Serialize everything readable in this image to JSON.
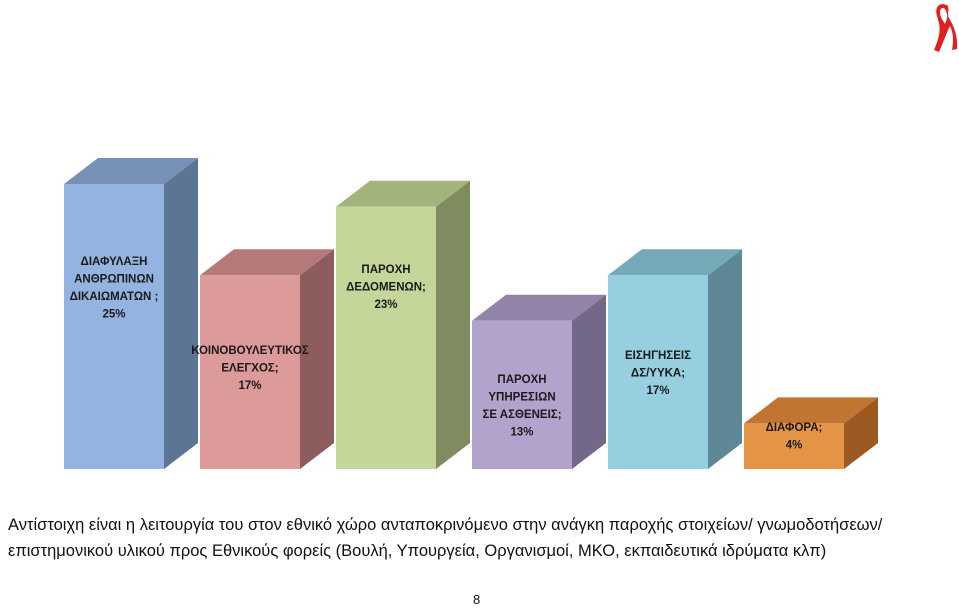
{
  "chart_data": {
    "type": "bar",
    "style": "3d",
    "title": "",
    "xlabel": "",
    "ylabel": "",
    "ylim": [
      0,
      25
    ],
    "grid": false,
    "legend": "none",
    "categories": [
      "ΔΙΑΦΥΛΑΞΗ ΑΝΘΡΩΠΙΝΩΝ ΔΙΚΑΙΩΜΑΤΩΝ",
      "ΚΟΙΝΟΒΟΥΛΕΥΤΙΚΟΣ ΕΛΕΓΧΟΣ",
      "ΠΑΡΟΧΗ ΔΕΔΟΜΕΝΩΝ",
      "ΠΑΡΟΧΗ ΥΠΗΡΕΣΙΩΝ ΣΕ ΑΣΘΕΝΕΙΣ",
      "ΕΙΣΗΓΗΣΕΙΣ ΔΣ/ΥΥΚΑ",
      "ΔΙΑΦΟΡΑ"
    ],
    "values": [
      25,
      17,
      23,
      13,
      17,
      4
    ],
    "label_lines": [
      [
        "ΔΙΑΦΥΛΑΞΗ",
        "ΑΝΘΡΩΠΙΝΩΝ",
        "ΔΙΚΑΙΩΜΑΤΩΝ ;",
        "25%"
      ],
      [
        "ΚΟΙΝΟΒΟΥΛΕΥΤΙΚΟΣ",
        "ΕΛΕΓΧΟΣ;",
        "17%"
      ],
      [
        "ΠΑΡΟΧΗ",
        "ΔΕΔΟΜΕΝΩΝ;",
        "23%"
      ],
      [
        "ΠΑΡΟΧΗ",
        "ΥΠΗΡΕΣΙΩΝ",
        "ΣΕ ΑΣΘΕΝΕΙΣ;",
        "13%"
      ],
      [
        "ΕΙΣΗΓΗΣΕΙΣ",
        "ΔΣ/ΥΥΚΑ;",
        "17%"
      ],
      [
        "ΔΙΑΦΟΡΑ;",
        "4%"
      ]
    ],
    "colors": [
      {
        "front": "#95b3e0",
        "side": "#5d7595",
        "top": "#7690b8"
      },
      {
        "front": "#dc9a9a",
        "side": "#8d5d5d",
        "top": "#b47a7a"
      },
      {
        "front": "#c5d69b",
        "side": "#7f8c5f",
        "top": "#a2b37c"
      },
      {
        "front": "#b2a3cc",
        "side": "#746888",
        "top": "#9184a8"
      },
      {
        "front": "#95cfe0",
        "side": "#5e8896",
        "top": "#76a9b8"
      },
      {
        "front": "#e39545",
        "side": "#9c5a22",
        "top": "#c07632"
      }
    ]
  },
  "caption": "Αντίστοιχη είναι η λειτουργία του στον εθνικό χώρο ανταποκρινόμενο στην ανάγκη παροχής στοιχείων/ γνωμοδοτήσεων/επιστημονικού υλικού προς Εθνικούς φορείς (Βουλή, Υπουργεία, Οργανισμοί, ΜΚΟ, εκπαιδευτικά ιδρύματα κλπ)",
  "page_number": "8",
  "logo": {
    "icon": "awareness-ribbon-icon",
    "color": "#e02020"
  }
}
